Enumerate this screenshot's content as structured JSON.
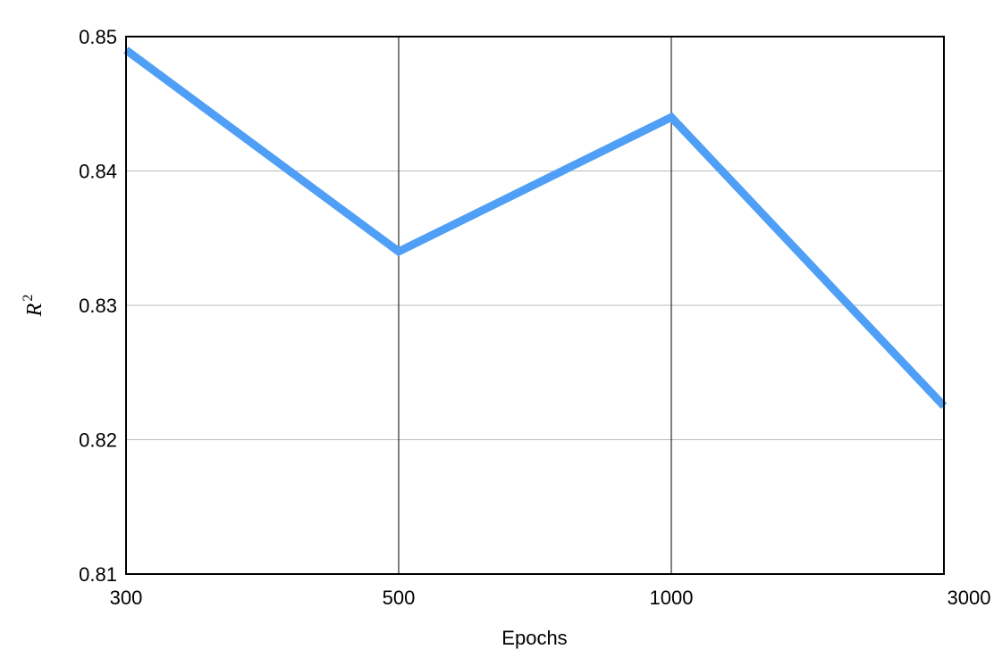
{
  "chart_data": {
    "type": "line",
    "title": "",
    "xlabel": "Epochs",
    "ylabel": {
      "base": "R",
      "superscript": "2"
    },
    "categories": [
      "300",
      "500",
      "1000",
      "3000"
    ],
    "series": [
      {
        "values": [
          0.849,
          0.834,
          0.844,
          0.8225
        ],
        "color": "#4e9ff5"
      }
    ],
    "ylim": [
      0.81,
      0.85
    ],
    "yticks": [
      "0.81",
      "0.82",
      "0.83",
      "0.84",
      "0.85"
    ],
    "grid": {
      "horizontal": true,
      "vertical": true,
      "horizontal_color": "#bbbbbb",
      "vertical_color": "#000000"
    },
    "legend": "none"
  }
}
